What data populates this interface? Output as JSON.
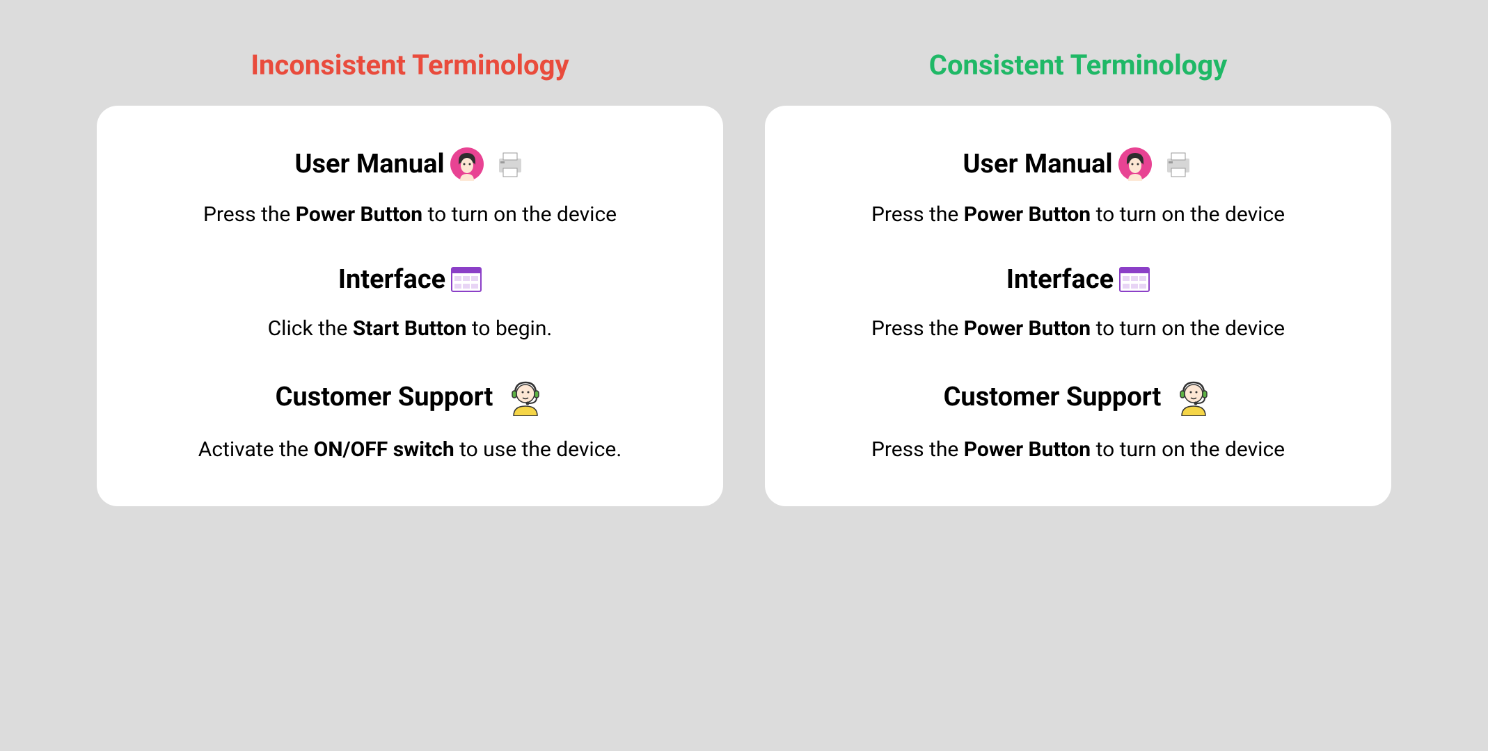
{
  "background_color": "#dcdcdc",
  "card_background": "#ffffff",
  "card_border_radius": 30,
  "left": {
    "title": "Inconsistent Terminology",
    "title_color": "#e94b3c",
    "sections": [
      {
        "title": "User Manual",
        "icons": [
          "avatar",
          "printer"
        ],
        "text_before": "Press the ",
        "text_bold": "Power Button",
        "text_after": " to turn on the device"
      },
      {
        "title": "Interface",
        "icons": [
          "interface"
        ],
        "text_before": "Click the ",
        "text_bold": "Start Button",
        "text_after": " to begin."
      },
      {
        "title": "Customer Support",
        "icons": [
          "support"
        ],
        "text_before": "Activate the ",
        "text_bold": "ON/OFF switch",
        "text_after": " to use the device."
      }
    ]
  },
  "right": {
    "title": "Consistent Terminology",
    "title_color": "#1fb866",
    "sections": [
      {
        "title": "User Manual",
        "icons": [
          "avatar",
          "printer"
        ],
        "text_before": "Press the ",
        "text_bold": "Power Button",
        "text_after": " to turn on the device"
      },
      {
        "title": "Interface",
        "icons": [
          "interface"
        ],
        "text_before": "Press the ",
        "text_bold": "Power Button",
        "text_after": " to turn on the device"
      },
      {
        "title": "Customer Support",
        "icons": [
          "support"
        ],
        "text_before": "Press the ",
        "text_bold": "Power Button",
        "text_after": " to turn on the device"
      }
    ]
  },
  "icons": {
    "avatar_bg": "#e84393",
    "avatar_hair": "#2d2d2d",
    "avatar_face": "#fde7d4",
    "printer_gray": "#d6d6d6",
    "printer_dark": "#9a9a9a",
    "interface_purple": "#8b3fc7",
    "interface_light": "#e8d5f5",
    "support_yellow": "#f5d547",
    "support_green": "#5eb344",
    "support_skin": "#fde7d4",
    "support_outline": "#333333"
  }
}
